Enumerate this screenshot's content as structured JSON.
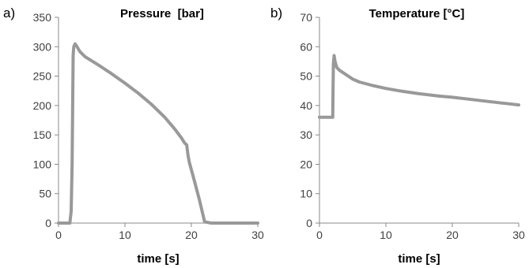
{
  "chart_data": [
    {
      "type": "line",
      "panel_label": "a)",
      "title": "Pressure  [bar]",
      "xlabel": "time [s]",
      "ylabel": "",
      "xlim": [
        0,
        30
      ],
      "ylim": [
        0,
        350
      ],
      "xticks": [
        0,
        10,
        20,
        30
      ],
      "yticks": [
        0,
        50,
        100,
        150,
        200,
        250,
        300,
        350
      ],
      "grid": false,
      "color": "#999999",
      "series": [
        {
          "x": [
            0,
            1.7,
            1.9,
            2.05,
            2.2,
            2.3,
            2.5,
            2.8,
            3.2,
            4,
            5,
            6,
            8,
            10,
            12,
            14,
            16,
            17.5,
            18.5,
            19,
            19.3,
            19.5,
            19.7,
            20.5,
            21.2,
            22,
            23,
            30
          ],
          "y": [
            0,
            0,
            20,
            100,
            285,
            300,
            305,
            300,
            292,
            283,
            276,
            269,
            254,
            238,
            221,
            202,
            180,
            160,
            145,
            136,
            133,
            115,
            103,
            70,
            40,
            2,
            0,
            0
          ]
        }
      ]
    },
    {
      "type": "line",
      "panel_label": "b)",
      "title": "Temperature [°C]",
      "xlabel": "time [s]",
      "ylabel": "",
      "xlim": [
        0,
        30
      ],
      "ylim": [
        0,
        70
      ],
      "xticks": [
        0,
        10,
        20,
        30
      ],
      "yticks": [
        0,
        10,
        20,
        30,
        40,
        50,
        60,
        70
      ],
      "grid": false,
      "color": "#999999",
      "series": [
        {
          "x": [
            0,
            2.0,
            2.05,
            2.1,
            2.2,
            2.35,
            2.6,
            3,
            4,
            5,
            6,
            8,
            10,
            12,
            15,
            18,
            20,
            22,
            25,
            28,
            30
          ],
          "y": [
            36,
            36,
            46,
            54,
            57,
            55,
            53,
            52,
            50.5,
            49,
            48,
            46.8,
            45.8,
            45,
            44,
            43.2,
            42.8,
            42.3,
            41.5,
            40.7,
            40.2
          ]
        }
      ]
    }
  ]
}
